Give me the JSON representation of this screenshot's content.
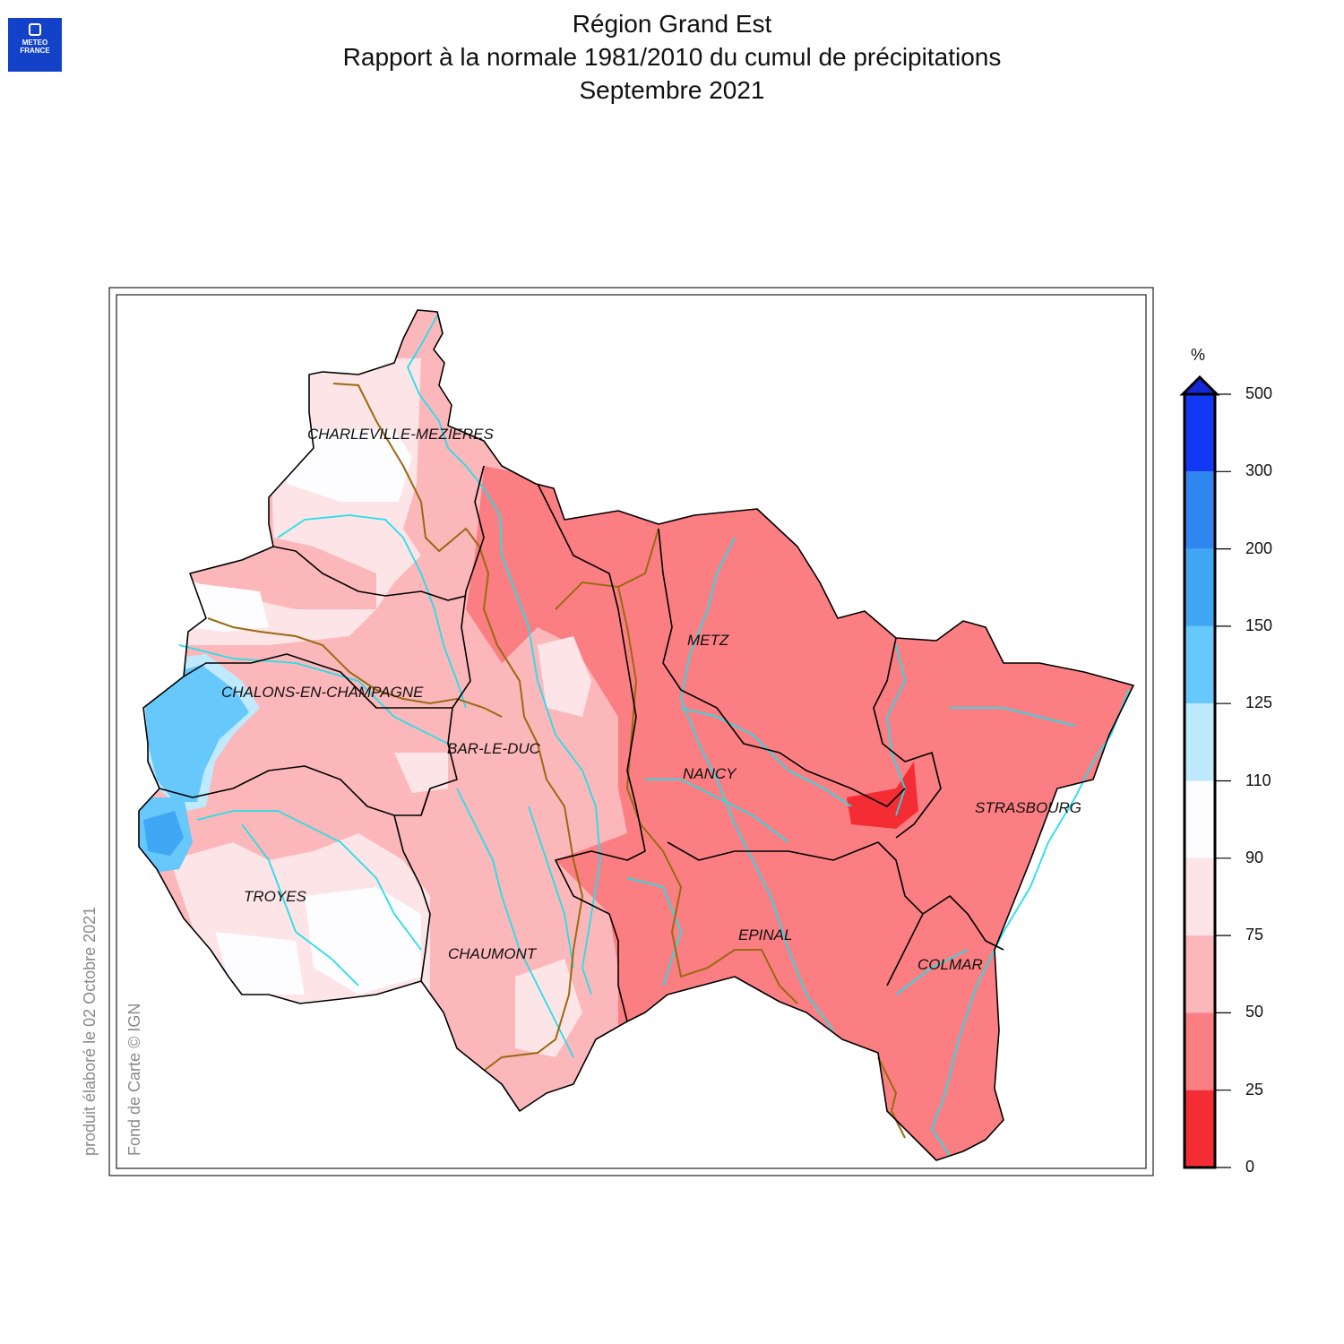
{
  "header": {
    "logo_line1": "METEO",
    "logo_line2": "FRANCE",
    "title": "Région Grand Est",
    "subtitle": "Rapport à la normale 1981/2010 du cumul de précipitations",
    "period": "Septembre 2021"
  },
  "side_text": {
    "produced": "produit élaboré le 02 Octobre 2021",
    "basemap": "Fond de Carte © IGN"
  },
  "cities": [
    "CHARLEVILLE-MEZIERES",
    "METZ",
    "CHALONS-EN-CHAMPAGNE",
    "BAR-LE-DUC",
    "NANCY",
    "STRASBOURG",
    "TROYES",
    "EPINAL",
    "CHAUMONT",
    "COLMAR"
  ],
  "legend": {
    "unit": "%",
    "ticks": [
      "500",
      "300",
      "200",
      "150",
      "125",
      "110",
      "90",
      "75",
      "50",
      "25",
      "0"
    ],
    "colors": [
      "#1238f5",
      "#2e86ee",
      "#40a7f5",
      "#66c8fb",
      "#bfe9fc",
      "#fdfcff",
      "#fde4e6",
      "#fcb7bb",
      "#fa7e82",
      "#f42d34"
    ]
  },
  "colors": {
    "river": "#22e0ea",
    "basin_boundary": "#9a6a10",
    "department_border": "#000000"
  }
}
